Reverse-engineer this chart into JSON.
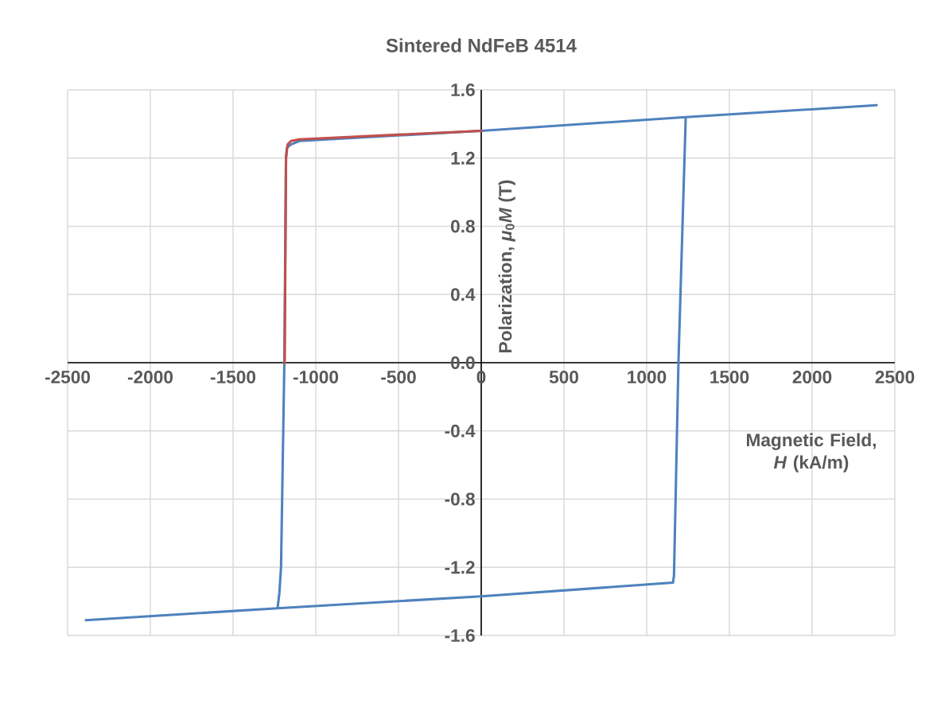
{
  "chart_data": {
    "type": "line",
    "title": "Sintered NdFeB 4514",
    "xlabel": "Magnetic Field, *H* (kA/m)",
    "ylabel": "Polarization, *μ*$_{0}$*M* (T)",
    "xlim": [
      -2500,
      2500
    ],
    "ylim": [
      -1.6,
      1.6
    ],
    "xticks": [
      -2500,
      -2000,
      -1500,
      -1000,
      -500,
      0,
      500,
      1000,
      1500,
      2000,
      2500
    ],
    "yticks": [
      -1.6,
      -1.2,
      -0.8,
      -0.4,
      {
        "value": 0,
        "label": "0.0"
      },
      0.4,
      0.8,
      1.2,
      1.6
    ],
    "grid": true,
    "series": [
      {
        "color": "#4f81bd",
        "x": [
          2390,
          1236,
          0,
          -1100,
          -1150,
          -1175,
          -1180,
          -1190,
          -1210,
          -1220,
          -1231,
          -2390,
          -1231,
          0,
          1159,
          1165,
          1192,
          1236
        ],
        "values": [
          1.51,
          1.44,
          1.36,
          1.3,
          1.28,
          1.26,
          1.2,
          0,
          -1.2,
          -1.35,
          -1.44,
          -1.51,
          -1.44,
          -1.37,
          -1.29,
          -1.25,
          0,
          1.44
        ]
      },
      {
        "color": "#c0504d",
        "x": [
          0,
          -1100,
          -1150,
          -1170,
          -1180,
          -1188
        ],
        "values": [
          1.36,
          1.31,
          1.3,
          1.28,
          1.2,
          0
        ]
      }
    ]
  }
}
